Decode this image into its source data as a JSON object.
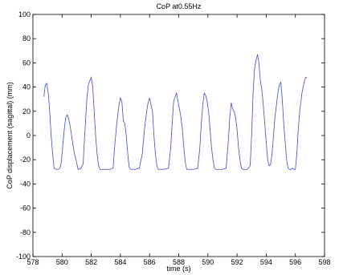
{
  "chart_data": {
    "type": "line",
    "title": "CoP at0.55Hz",
    "xlabel": "time (s)",
    "ylabel": "CoP displacement (sagittal) (mm)",
    "xlim": [
      578,
      598
    ],
    "ylim": [
      -100,
      100
    ],
    "x_ticks": [
      578,
      580,
      582,
      584,
      586,
      588,
      590,
      592,
      594,
      596,
      598
    ],
    "y_ticks": [
      -100,
      -80,
      -60,
      -40,
      -20,
      0,
      20,
      40,
      60,
      80,
      100
    ],
    "grid": false,
    "legend": "none",
    "colors": {
      "line": "#3b4bd6",
      "axes": "#000000",
      "background": "#ffffff"
    },
    "series": [
      {
        "x": [
          578.75,
          578.85,
          578.95,
          579.05,
          579.15,
          579.25,
          579.35,
          579.45,
          579.6,
          579.75,
          579.85,
          579.95,
          580.05,
          580.15,
          580.25,
          580.35,
          580.45,
          580.55,
          580.65,
          580.75,
          580.85,
          580.95,
          581.1,
          581.3,
          581.45,
          581.5,
          581.6,
          581.7,
          581.8,
          581.9,
          582.0,
          582.1,
          582.2,
          582.3,
          582.4,
          582.5,
          582.6,
          582.7,
          582.8,
          583.0,
          583.3,
          583.5,
          583.6,
          583.75,
          583.9,
          584.0,
          584.1,
          584.2,
          584.3,
          584.4,
          584.5,
          584.6,
          584.7,
          584.8,
          585.0,
          585.3,
          585.5,
          585.65,
          585.8,
          585.9,
          586.0,
          586.1,
          586.2,
          586.3,
          586.4,
          586.5,
          586.6,
          586.7,
          587.0,
          587.3,
          587.45,
          587.55,
          587.65,
          587.75,
          587.85,
          587.95,
          588.05,
          588.15,
          588.25,
          588.35,
          588.45,
          588.55,
          588.65,
          588.75,
          589.0,
          589.3,
          589.45,
          589.55,
          589.65,
          589.75,
          589.85,
          589.95,
          590.05,
          590.15,
          590.25,
          590.35,
          590.45,
          590.55,
          590.65,
          590.75,
          591.0,
          591.25,
          591.4,
          591.5,
          591.6,
          591.7,
          591.8,
          591.9,
          592.0,
          592.1,
          592.2,
          592.3,
          592.4,
          592.5,
          592.7,
          592.9,
          593.0,
          593.1,
          593.2,
          593.3,
          593.4,
          593.5,
          593.6,
          593.7,
          593.8,
          593.9,
          594.0,
          594.1,
          594.2,
          594.3,
          594.4,
          594.5,
          594.6,
          594.7,
          594.8,
          594.9,
          595.0,
          595.1,
          595.2,
          595.3,
          595.4,
          595.5,
          595.6,
          595.7,
          595.8,
          595.9,
          596.0,
          596.1,
          596.2,
          596.3,
          596.45,
          596.6,
          596.7,
          596.8
        ],
        "y": [
          32,
          42,
          43,
          35,
          20,
          0,
          -15,
          -27,
          -28,
          -28,
          -27,
          -22,
          -8,
          5,
          15,
          17,
          14,
          8,
          0,
          -8,
          -15,
          -20,
          -28,
          -27,
          -23,
          -10,
          10,
          30,
          42,
          45,
          48,
          40,
          20,
          0,
          -15,
          -25,
          -28,
          -28,
          -28,
          -28,
          -28,
          -27,
          -10,
          10,
          25,
          31,
          28,
          12,
          10,
          0,
          -15,
          -26,
          -28,
          -28,
          -28,
          -27,
          -15,
          5,
          20,
          27,
          31,
          25,
          20,
          0,
          -15,
          -25,
          -28,
          -28,
          -28,
          -27,
          -10,
          10,
          28,
          32,
          35,
          28,
          22,
          15,
          5,
          -10,
          -22,
          -28,
          -28,
          -28,
          -28,
          -27,
          -10,
          10,
          25,
          35,
          33,
          28,
          20,
          5,
          -10,
          -20,
          -27,
          -28,
          -28,
          -28,
          -28,
          -27,
          -5,
          15,
          27,
          22,
          20,
          15,
          5,
          -10,
          -20,
          -27,
          -28,
          -28,
          -28,
          -25,
          0,
          35,
          55,
          62,
          67,
          60,
          45,
          38,
          25,
          10,
          -5,
          -20,
          -25,
          -24,
          -15,
          0,
          15,
          25,
          35,
          42,
          44,
          30,
          10,
          -5,
          -20,
          -27,
          -28,
          -28,
          -27,
          -28,
          -28,
          -15,
          5,
          20,
          35,
          44,
          48,
          48
        ]
      }
    ]
  }
}
